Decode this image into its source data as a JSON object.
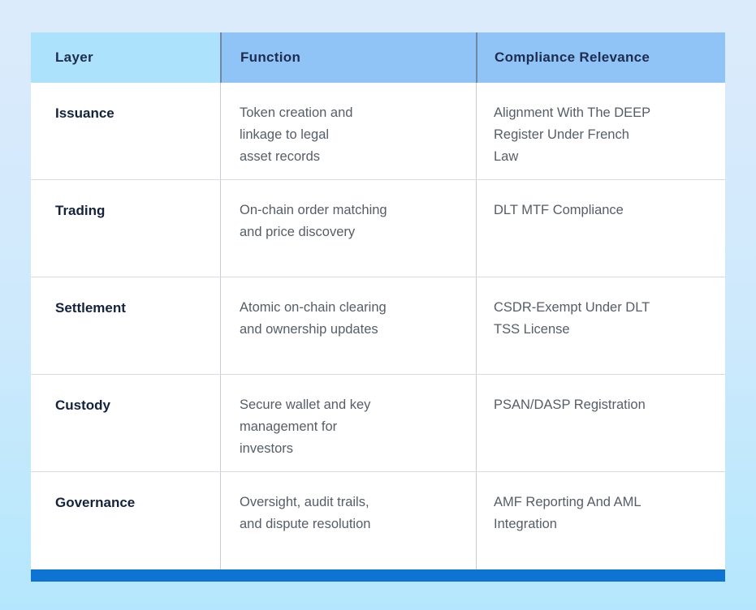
{
  "page": {
    "background_top": "#dcebfb",
    "background_bottom": "#b4e7fd"
  },
  "colors": {
    "header_layer_bg": "#ace2fc",
    "header_bg": "#90c4f7",
    "header_text": "#1e2c4d",
    "header_divider": "#7088a4",
    "layer_text": "#14223e",
    "body_text": "#555e68",
    "row_border": "#d9dde1",
    "column_divider": "#c9ced4",
    "accent_bar": "#0e74d4"
  },
  "table": {
    "headers": {
      "layer": "Layer",
      "function": "Function",
      "compliance": "Compliance Relevance"
    },
    "rows": [
      {
        "layer": "Issuance",
        "function": "Token creation and\nlinkage to legal\nasset records",
        "compliance": "Alignment With The DEEP\nRegister Under French\nLaw"
      },
      {
        "layer": "Trading",
        "function": "On-chain order matching\nand price discovery",
        "compliance": "DLT MTF Compliance"
      },
      {
        "layer": "Settlement",
        "function": "Atomic on-chain clearing\nand ownership updates",
        "compliance": "CSDR-Exempt Under DLT\nTSS License"
      },
      {
        "layer": "Custody",
        "function": "Secure wallet and key\nmanagement for\ninvestors",
        "compliance": "PSAN/DASP Registration"
      },
      {
        "layer": "Governance",
        "function": "Oversight, audit trails,\nand dispute resolution",
        "compliance": "AMF Reporting And AML\nIntegration"
      }
    ]
  }
}
